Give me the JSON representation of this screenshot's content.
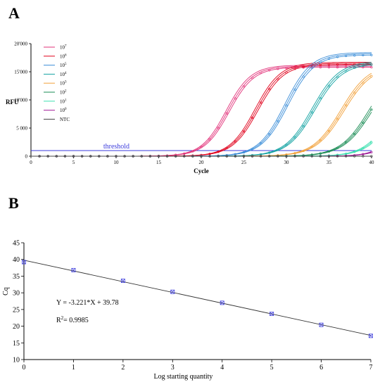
{
  "panel_a_label": "A",
  "panel_b_label": "B",
  "chart_data": [
    {
      "type": "line",
      "xlabel": "Cycle",
      "ylabel": "RFU",
      "xlim": [
        0,
        40
      ],
      "ylim": [
        0,
        20000
      ],
      "x_ticks": [
        "0",
        "5",
        "10",
        "15",
        "20",
        "25",
        "30",
        "35",
        "40"
      ],
      "y_ticks": [
        "0",
        "5 000",
        "10'000",
        "15'000",
        "20'000"
      ],
      "threshold": {
        "label": "threshold",
        "value": 1000,
        "color": "#3b3bdc"
      },
      "legend": {
        "position": "top-left"
      },
      "series": [
        {
          "name": "10",
          "exp": "7",
          "color": "#e2337a",
          "cq": 19.2,
          "plateau": 15800,
          "slope": 1.45
        },
        {
          "name": "10",
          "exp": "6",
          "color": "#e0001b",
          "cq": 22.4,
          "plateau": 16300,
          "slope": 1.5
        },
        {
          "name": "10",
          "exp": "5",
          "color": "#3d8fd9",
          "cq": 25.6,
          "plateau": 18000,
          "slope": 1.55
        },
        {
          "name": "10",
          "exp": "4",
          "color": "#14a3a3",
          "cq": 28.8,
          "plateau": 16500,
          "slope": 1.6
        },
        {
          "name": "10",
          "exp": "3",
          "color": "#f2a13a",
          "cq": 32.1,
          "plateau": 16000,
          "slope": 1.65
        },
        {
          "name": "10",
          "exp": "2",
          "color": "#1a8c55",
          "cq": 35.3,
          "plateau": 16200,
          "slope": 1.7
        },
        {
          "name": "10",
          "exp": "1",
          "color": "#3ee0b0",
          "cq": 38.4,
          "plateau": 15000,
          "slope": 1.6
        },
        {
          "name": "10",
          "exp": "0",
          "color": "#a2209a",
          "cq": 40.5,
          "plateau": 12000,
          "slope": 1.4
        },
        {
          "name": "NTC",
          "exp": "",
          "color": "#444444",
          "cq": null,
          "plateau": 0,
          "slope": 1.0
        }
      ]
    },
    {
      "type": "scatter",
      "xlabel": "Log starting quantity",
      "ylabel": "Cq",
      "xlim": [
        0,
        7
      ],
      "ylim": [
        10,
        45
      ],
      "x_ticks": [
        "0",
        "1",
        "2",
        "3",
        "4",
        "5",
        "6",
        "7"
      ],
      "y_ticks": [
        "10",
        "15",
        "20",
        "25",
        "30",
        "35",
        "40",
        "45"
      ],
      "points": [
        {
          "x": 0,
          "y": 39.2
        },
        {
          "x": 1,
          "y": 36.8
        },
        {
          "x": 2,
          "y": 33.6
        },
        {
          "x": 3,
          "y": 30.3
        },
        {
          "x": 4,
          "y": 27.0
        },
        {
          "x": 5,
          "y": 23.7
        },
        {
          "x": 6,
          "y": 20.4
        },
        {
          "x": 7,
          "y": 17.1
        }
      ],
      "fit": {
        "slope": -3.221,
        "intercept": 39.78
      },
      "equation": "Y = -3.221*X + 39.78",
      "r2_label": "R",
      "r2_sup": "2",
      "r2_value": "= 0.9985",
      "marker_color": "#3b3bdc"
    }
  ]
}
